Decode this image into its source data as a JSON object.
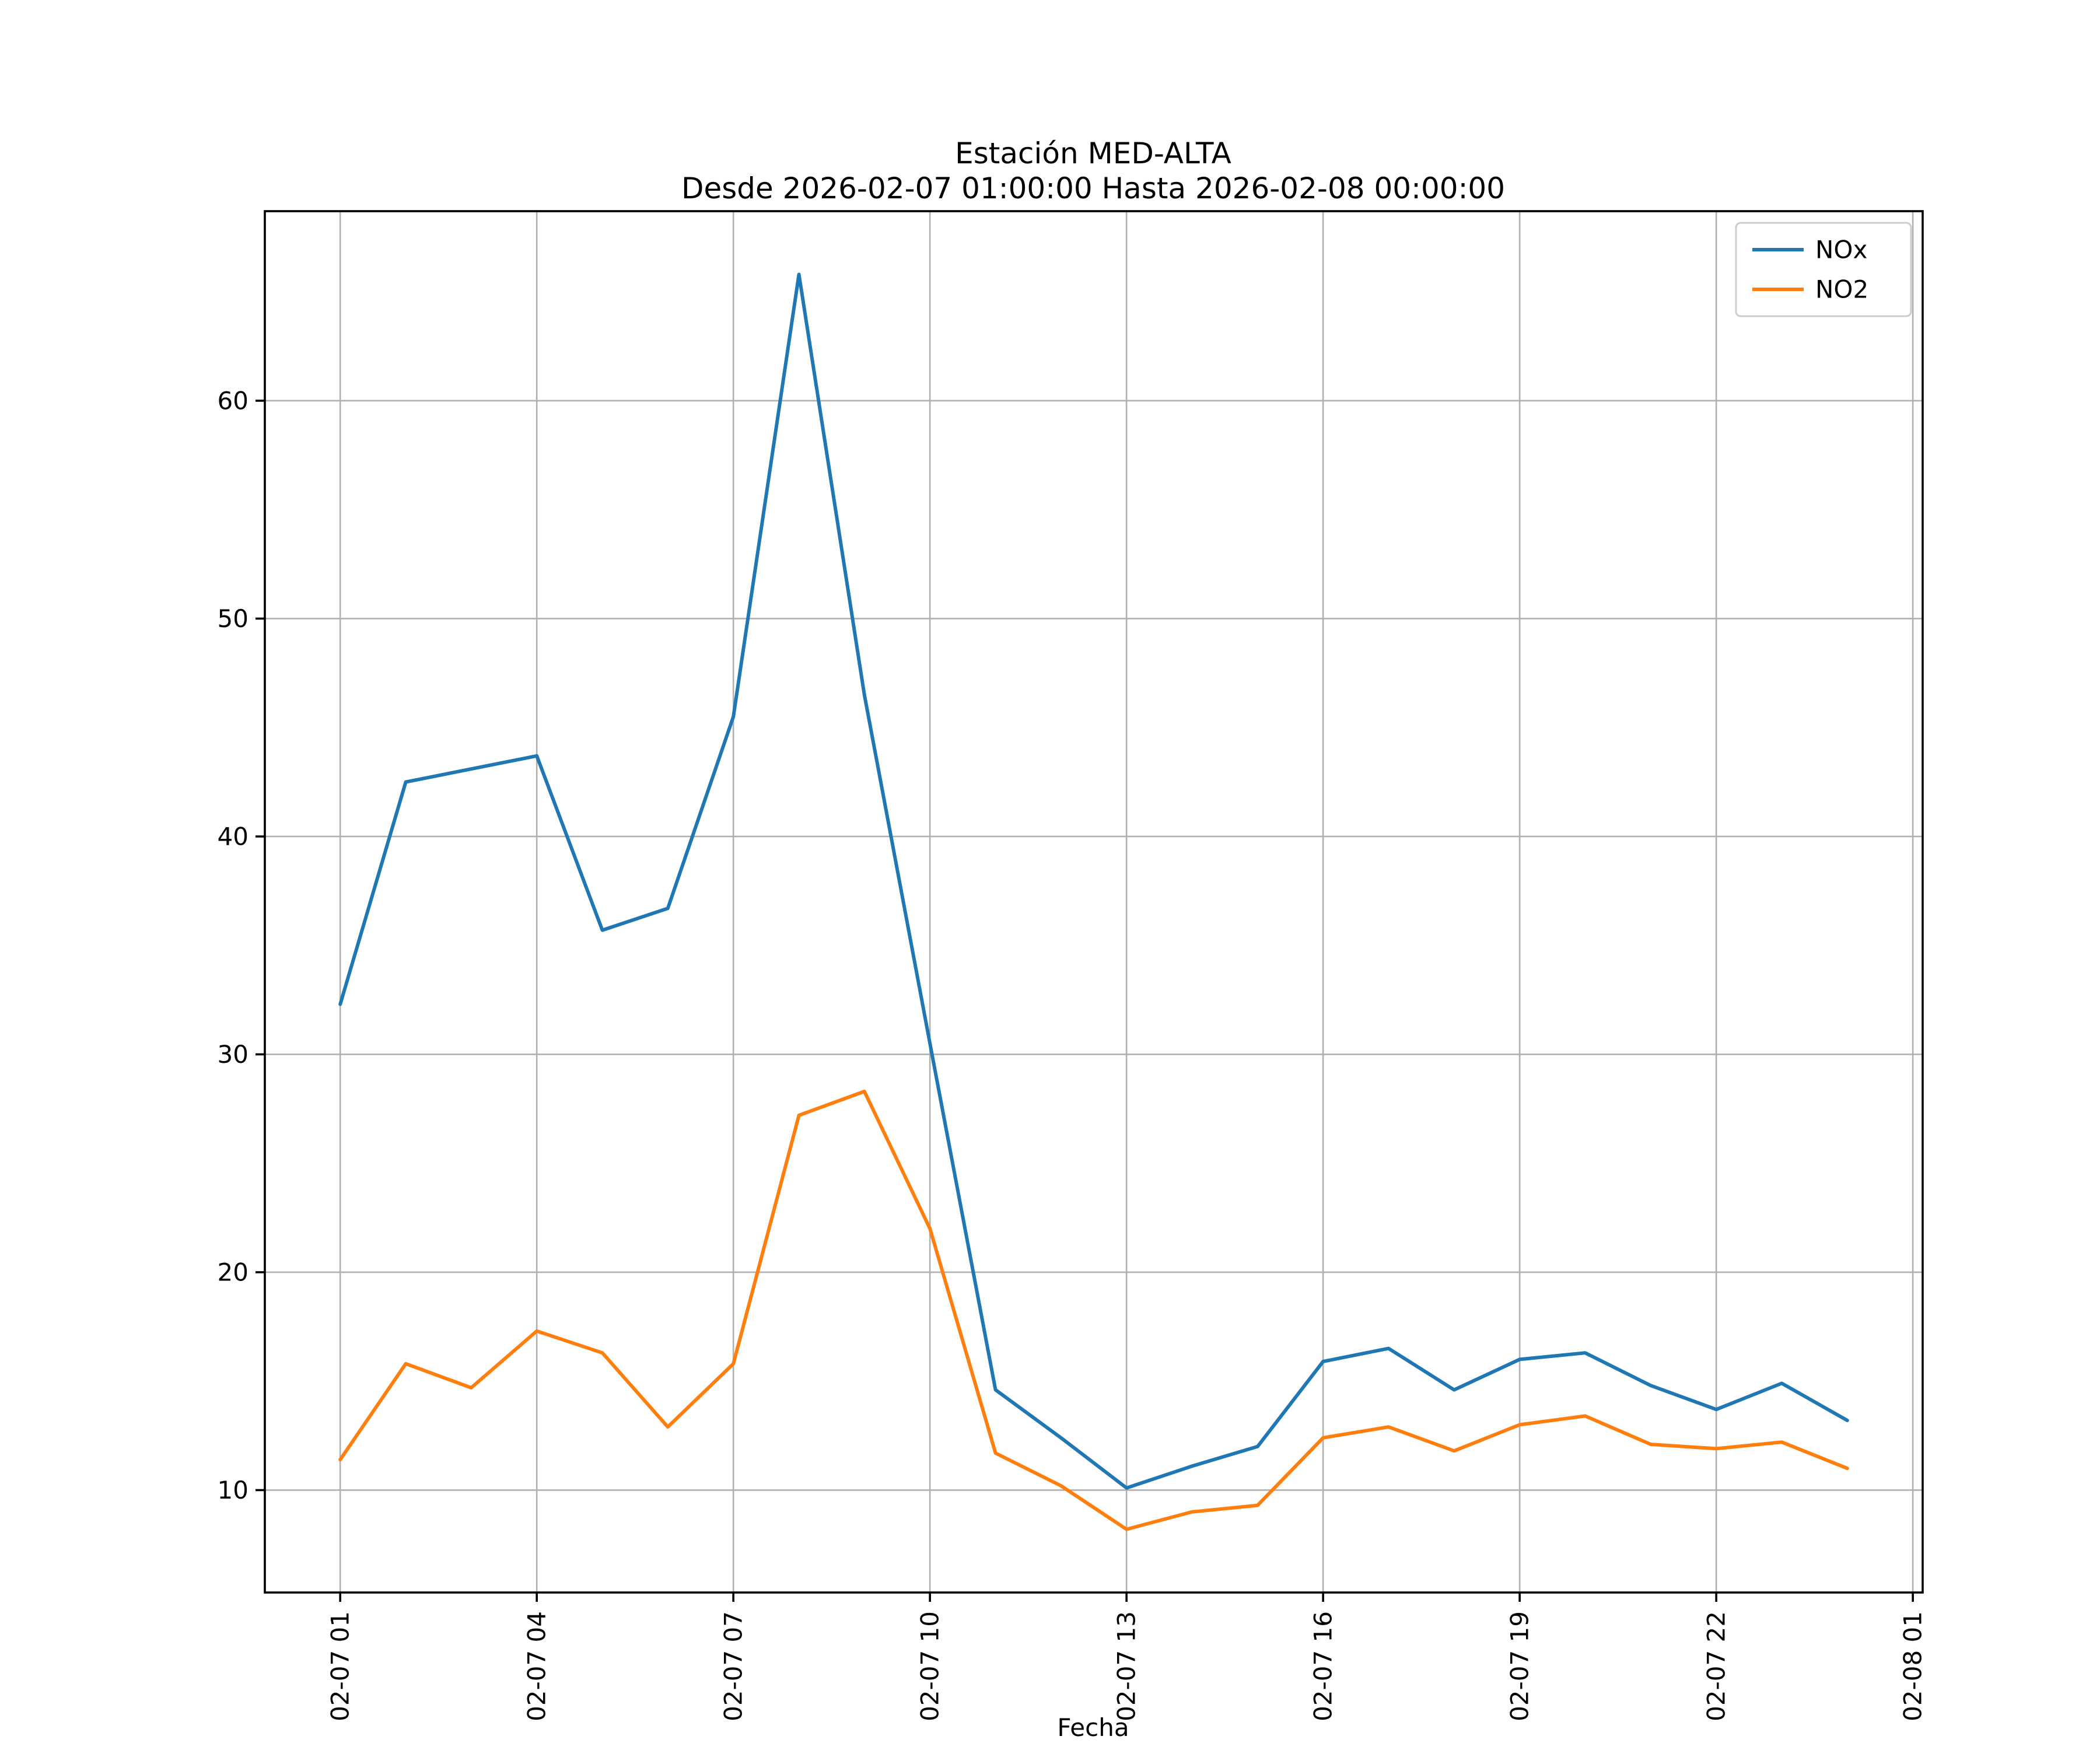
{
  "figure": {
    "title_line1": "Estación MED-ALTA",
    "title_line2": "Desde 2026-02-07 01:00:00 Hasta 2026-02-08 00:00:00",
    "xlabel": "Fecha"
  },
  "chart_data": {
    "type": "line",
    "title": "Estación MED-ALTA\nDesde 2026-02-07 01:00:00 Hasta 2026-02-08 00:00:00",
    "xlabel": "Fecha",
    "ylabel": "",
    "grid": true,
    "grid_color": "#b0b0b0",
    "legend_position": "upper right",
    "xlim": [
      -0.15,
      25.15
    ],
    "ylim": [
      5.3,
      68.7
    ],
    "x_tick_hours": [
      1,
      4,
      7,
      10,
      13,
      16,
      19,
      22,
      25
    ],
    "x_tick_labels": [
      "02-07 01",
      "02-07 04",
      "02-07 07",
      "02-07 10",
      "02-07 13",
      "02-07 16",
      "02-07 19",
      "02-07 22",
      "02-08 01"
    ],
    "y_ticks": [
      10,
      20,
      30,
      40,
      50,
      60
    ],
    "x_hours": [
      1,
      2,
      3,
      4,
      5,
      6,
      7,
      8,
      9,
      10,
      11,
      12,
      13,
      14,
      15,
      16,
      17,
      18,
      19,
      20,
      21,
      22,
      23,
      24
    ],
    "x_labels": [
      "02-07 01:00",
      "02-07 02:00",
      "02-07 03:00",
      "02-07 04:00",
      "02-07 05:00",
      "02-07 06:00",
      "02-07 07:00",
      "02-07 08:00",
      "02-07 09:00",
      "02-07 10:00",
      "02-07 11:00",
      "02-07 12:00",
      "02-07 13:00",
      "02-07 14:00",
      "02-07 15:00",
      "02-07 16:00",
      "02-07 17:00",
      "02-07 18:00",
      "02-07 19:00",
      "02-07 20:00",
      "02-07 21:00",
      "02-07 22:00",
      "02-07 23:00",
      "02-08 00:00"
    ],
    "series": [
      {
        "name": "NOx",
        "color": "#1f77b4",
        "values": [
          32.3,
          42.5,
          43.1,
          43.7,
          35.7,
          36.7,
          45.5,
          65.8,
          46.5,
          30.5,
          14.6,
          12.4,
          10.1,
          11.1,
          12.0,
          15.9,
          16.5,
          14.6,
          16.0,
          16.3,
          14.8,
          13.7,
          14.9,
          13.2
        ]
      },
      {
        "name": "NO2",
        "color": "#ff7f0e",
        "values": [
          11.4,
          15.8,
          14.7,
          17.3,
          16.3,
          12.9,
          15.8,
          27.2,
          28.3,
          22.0,
          11.7,
          10.2,
          8.2,
          9.0,
          9.3,
          12.4,
          12.9,
          11.8,
          13.0,
          13.4,
          12.1,
          11.9,
          12.2,
          11.0
        ]
      }
    ]
  }
}
